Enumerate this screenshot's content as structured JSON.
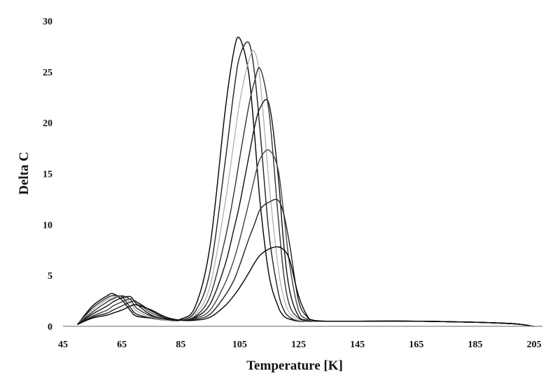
{
  "chart_data": {
    "type": "line",
    "title": "",
    "xlabel": "Temperature [K]",
    "ylabel": "Delta C",
    "xlim": [
      45,
      210
    ],
    "ylim": [
      0,
      30
    ],
    "xticks": [
      45,
      65,
      85,
      105,
      125,
      145,
      165,
      185,
      205
    ],
    "yticks": [
      0,
      5,
      10,
      15,
      20,
      25,
      30
    ],
    "grid": false,
    "legend": "none",
    "x": [
      50,
      55,
      60,
      62,
      65,
      68,
      70,
      75,
      80,
      85,
      90,
      95,
      100,
      103,
      105,
      108,
      110,
      112,
      115,
      118,
      120,
      122,
      125,
      128,
      130,
      135,
      145,
      165,
      185,
      195,
      200,
      205
    ],
    "series": [
      {
        "color": "#000000",
        "values": [
          0.2,
          2.0,
          3.0,
          3.2,
          2.6,
          1.5,
          1.0,
          0.8,
          0.6,
          0.7,
          2.0,
          8.0,
          21.0,
          27.0,
          28.3,
          25.0,
          19.0,
          12.0,
          5.0,
          2.0,
          1.0,
          0.7,
          0.5,
          0.5,
          0.5,
          0.5,
          0.5,
          0.5,
          0.4,
          0.3,
          0.2,
          0.0
        ]
      },
      {
        "color": "#222222",
        "values": [
          0.2,
          1.8,
          2.8,
          3.0,
          2.9,
          1.8,
          1.2,
          0.8,
          0.6,
          0.6,
          1.5,
          5.5,
          16.0,
          23.0,
          26.5,
          27.9,
          25.0,
          19.0,
          9.0,
          3.5,
          1.6,
          0.9,
          0.5,
          0.5,
          0.5,
          0.5,
          0.5,
          0.5,
          0.4,
          0.3,
          0.2,
          0.0
        ]
      },
      {
        "color": "#aaaaaa",
        "values": [
          0.2,
          1.6,
          2.6,
          2.8,
          3.0,
          2.3,
          1.5,
          0.9,
          0.6,
          0.6,
          1.2,
          4.0,
          12.0,
          18.0,
          22.0,
          26.0,
          27.0,
          24.0,
          14.0,
          6.0,
          2.8,
          1.3,
          0.6,
          0.5,
          0.5,
          0.5,
          0.5,
          0.5,
          0.4,
          0.3,
          0.2,
          0.0
        ]
      },
      {
        "color": "#333333",
        "values": [
          0.2,
          1.4,
          2.4,
          2.7,
          3.0,
          2.6,
          1.8,
          1.0,
          0.7,
          0.6,
          1.0,
          3.0,
          8.5,
          13.0,
          16.5,
          21.5,
          24.0,
          25.3,
          21.0,
          11.0,
          5.0,
          2.0,
          0.8,
          0.5,
          0.5,
          0.5,
          0.5,
          0.5,
          0.4,
          0.3,
          0.2,
          0.0
        ]
      },
      {
        "color": "#111111",
        "values": [
          0.2,
          1.2,
          2.0,
          2.4,
          2.8,
          2.9,
          2.2,
          1.1,
          0.7,
          0.6,
          0.9,
          2.2,
          6.0,
          9.5,
          12.0,
          16.5,
          19.5,
          21.5,
          21.8,
          15.0,
          8.0,
          3.5,
          1.0,
          0.6,
          0.5,
          0.5,
          0.5,
          0.5,
          0.4,
          0.3,
          0.2,
          0.0
        ]
      },
      {
        "color": "#444444",
        "values": [
          0.2,
          1.0,
          1.6,
          2.0,
          2.4,
          2.7,
          2.4,
          1.3,
          0.8,
          0.6,
          0.8,
          1.6,
          4.2,
          6.5,
          8.5,
          12.0,
          14.5,
          16.5,
          17.3,
          15.5,
          11.0,
          6.0,
          1.6,
          0.7,
          0.5,
          0.5,
          0.5,
          0.5,
          0.4,
          0.3,
          0.2,
          0.0
        ]
      },
      {
        "color": "#222222",
        "values": [
          0.2,
          0.9,
          1.3,
          1.6,
          2.0,
          2.4,
          2.4,
          1.5,
          0.8,
          0.6,
          0.7,
          1.2,
          3.0,
          4.5,
          6.0,
          8.5,
          10.0,
          11.5,
          12.2,
          12.4,
          11.0,
          8.0,
          2.5,
          0.9,
          0.6,
          0.5,
          0.5,
          0.5,
          0.4,
          0.3,
          0.2,
          0.0
        ]
      },
      {
        "color": "#000000",
        "values": [
          0.2,
          0.8,
          1.1,
          1.3,
          1.6,
          2.0,
          2.1,
          1.6,
          0.9,
          0.6,
          0.6,
          0.9,
          2.0,
          3.0,
          3.8,
          5.2,
          6.2,
          7.0,
          7.6,
          7.8,
          7.5,
          6.5,
          3.0,
          1.0,
          0.6,
          0.5,
          0.5,
          0.5,
          0.4,
          0.3,
          0.2,
          0.0
        ]
      }
    ]
  }
}
